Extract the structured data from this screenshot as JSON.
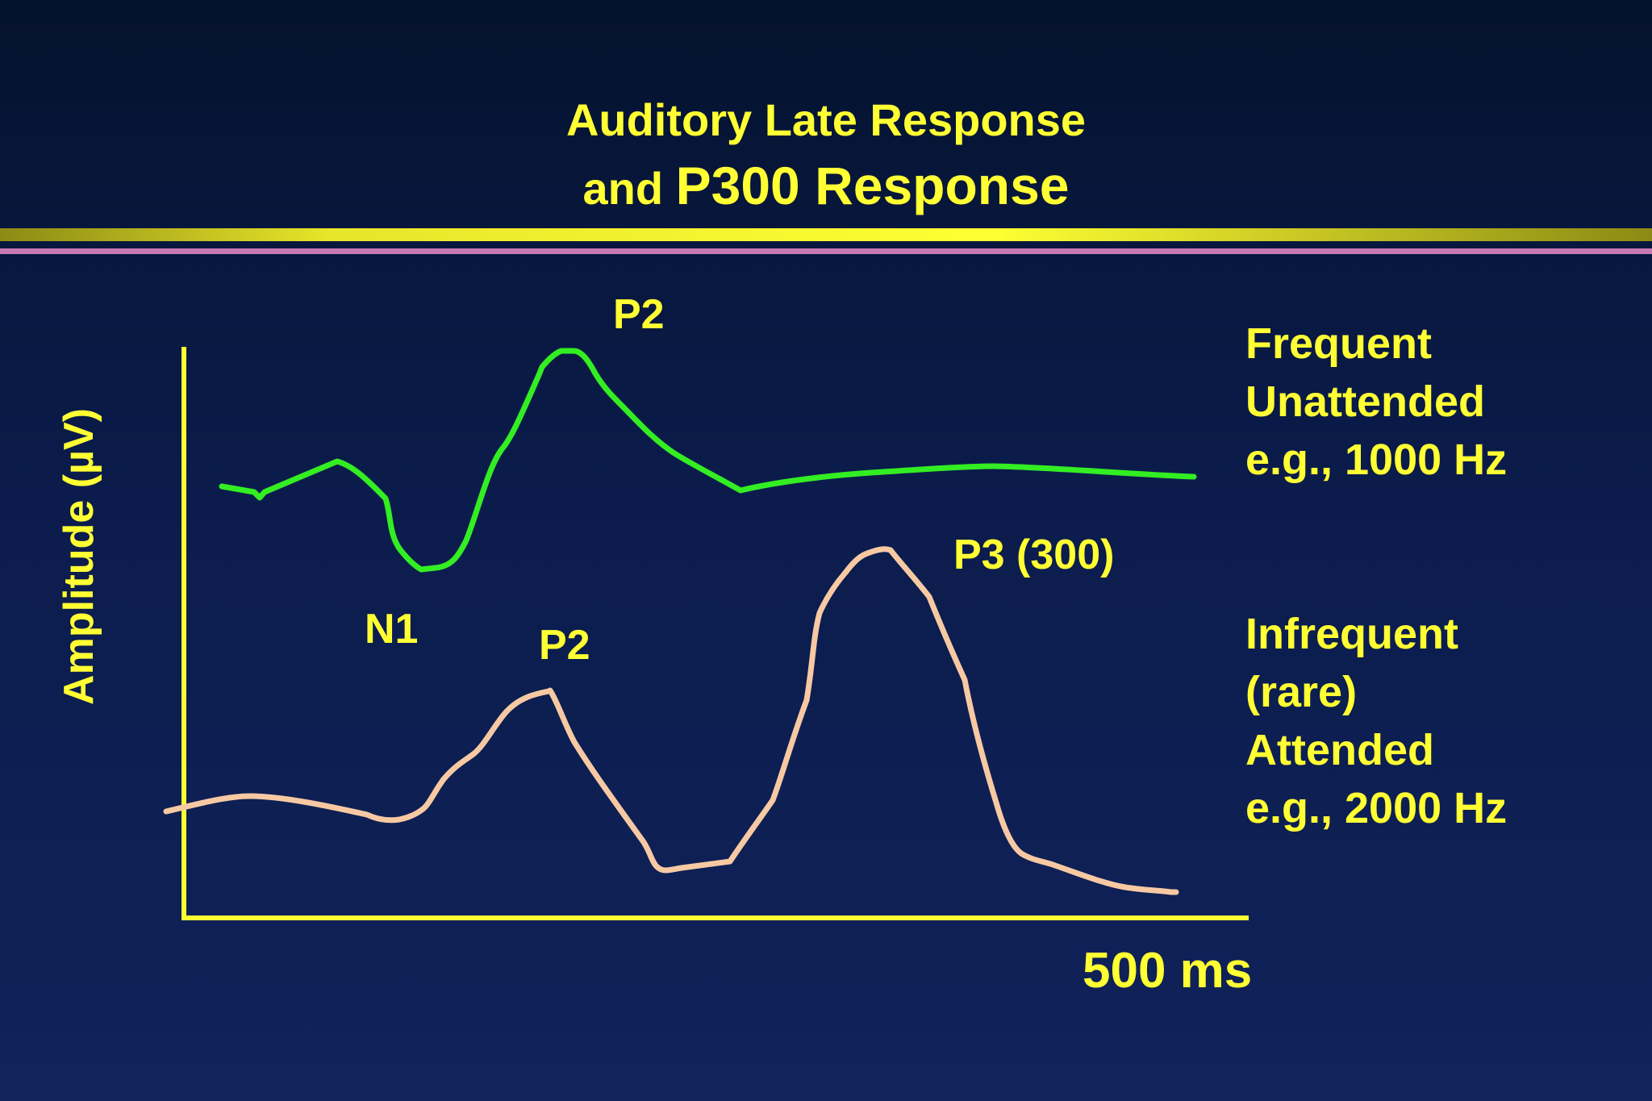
{
  "title": {
    "line1": "Auditory Late Response",
    "line2_prefix": "and ",
    "line2_main": "P300 Response"
  },
  "axes": {
    "ylabel": "Amplitude (µV)",
    "xlabel": "500 ms"
  },
  "annotations": {
    "top_peak": "P2",
    "trough": "N1",
    "bottom_peak_1": "P2",
    "bottom_peak_2": "P3 (300)"
  },
  "legend": {
    "frequent": [
      "Frequent",
      "Unattended",
      "e.g., 1000 Hz"
    ],
    "infrequent": [
      "Infrequent",
      "(rare)",
      "Attended",
      "e.g., 2000 Hz"
    ]
  },
  "colors": {
    "background": "#0b1c4c",
    "text": "#ffff33",
    "axis": "#ffff33",
    "frequent_trace": "#33ee22",
    "infrequent_trace": "#f7c9a3",
    "rule_pink": "#c77bb5"
  }
}
